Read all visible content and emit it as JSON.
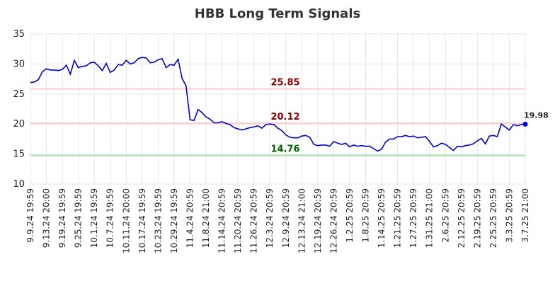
{
  "chart_data": {
    "type": "line",
    "title": "HBB Long Term Signals",
    "categories": [
      "9.9.24 19:59",
      null,
      null,
      null,
      "9.13.24 20:00",
      null,
      null,
      null,
      "9.19.24 19:59",
      null,
      null,
      null,
      "9.25.24 19:59",
      null,
      null,
      null,
      "10.1.24 19:59",
      null,
      null,
      null,
      "10.7.24 19:59",
      null,
      null,
      null,
      "10.11.24 20:00",
      null,
      null,
      null,
      "10.17.24 19:59",
      null,
      null,
      null,
      "10.23.24 19:59",
      null,
      null,
      null,
      "10.29.24 19:59",
      null,
      null,
      null,
      "11.4.24 20:59",
      null,
      null,
      null,
      "11.8.24 21:00",
      null,
      null,
      null,
      "11.14.24 20:59",
      null,
      null,
      null,
      "11.20.24 20:59",
      null,
      null,
      null,
      "11.26.24 20:59",
      null,
      null,
      null,
      "12.3.24 20:59",
      null,
      null,
      null,
      "12.9.24 20:59",
      null,
      null,
      null,
      "12.13.24 21:00",
      null,
      null,
      null,
      "12.19.24 20:59",
      null,
      null,
      null,
      "12.26.24 20:59",
      null,
      null,
      null,
      "1.2.25 20:59",
      null,
      null,
      null,
      "1.8.25 20:59",
      null,
      null,
      null,
      "1.14.25 20:59",
      null,
      null,
      null,
      "1.21.25 20:59",
      null,
      null,
      null,
      "1.27.25 20:59",
      null,
      null,
      null,
      "1.31.25 21:00",
      null,
      null,
      null,
      "2.6.25 20:59",
      null,
      null,
      null,
      "2.12.25 20:59",
      null,
      null,
      null,
      "2.19.25 20:59",
      null,
      null,
      null,
      "2.25.25 20:59",
      null,
      null,
      null,
      "3.3.25 20:59",
      null,
      null,
      null,
      "3.7.25 21:00"
    ],
    "values": [
      26.9,
      27.0,
      27.4,
      28.7,
      29.2,
      29.0,
      29.0,
      28.9,
      29.1,
      29.8,
      28.3,
      30.6,
      29.4,
      29.6,
      29.7,
      30.2,
      30.3,
      29.7,
      28.9,
      30.1,
      28.6,
      29.0,
      29.9,
      29.8,
      30.6,
      30.0,
      30.2,
      30.9,
      31.1,
      31.0,
      30.2,
      30.3,
      30.7,
      30.9,
      29.4,
      29.9,
      29.8,
      30.8,
      27.6,
      26.4,
      20.7,
      20.6,
      22.4,
      21.9,
      21.2,
      20.8,
      20.2,
      20.2,
      20.4,
      20.1,
      19.9,
      19.4,
      19.2,
      19.0,
      19.2,
      19.4,
      19.5,
      19.7,
      19.3,
      19.9,
      20.0,
      19.9,
      19.3,
      18.9,
      18.2,
      17.8,
      17.7,
      17.7,
      18.0,
      18.1,
      17.8,
      16.6,
      16.4,
      16.5,
      16.5,
      16.3,
      17.1,
      16.8,
      16.6,
      16.8,
      16.2,
      16.5,
      16.3,
      16.4,
      16.3,
      16.3,
      15.9,
      15.5,
      15.8,
      17.0,
      17.5,
      17.5,
      17.9,
      17.9,
      18.1,
      17.9,
      18.0,
      17.7,
      17.8,
      17.9,
      17.1,
      16.2,
      16.4,
      16.8,
      16.6,
      16.1,
      15.6,
      16.3,
      16.2,
      16.4,
      16.5,
      16.7,
      17.2,
      17.6,
      16.7,
      18.0,
      18.1,
      17.9,
      20.0,
      19.5,
      19.0,
      19.9,
      19.7,
      19.9,
      19.98
    ],
    "color": "#0000cc",
    "ylim": [
      10,
      35
    ],
    "yticks": [
      10,
      15,
      20,
      25,
      30,
      35
    ],
    "grid": true,
    "reference_lines": [
      {
        "value": 25.85,
        "color": "#ffcccc",
        "label_color": "#8b0000"
      },
      {
        "value": 20.12,
        "color": "#ffcccc",
        "label_color": "#8b0000"
      },
      {
        "value": 14.76,
        "color": "#a6e0a6",
        "label_color": "#006400"
      }
    ]
  }
}
